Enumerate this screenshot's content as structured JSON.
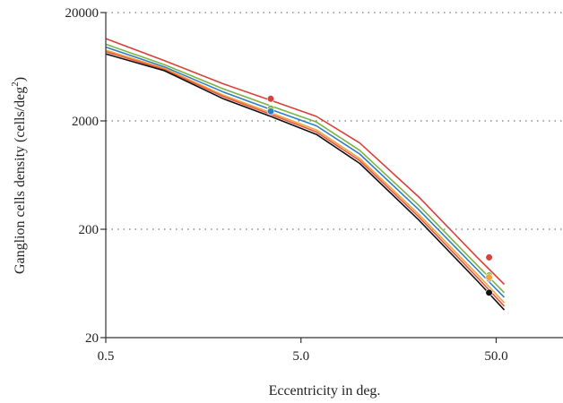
{
  "chart_data": {
    "type": "line",
    "xlabel": "Eccentricity in deg.",
    "ylabel": "Ganglion cells density (cells/deg",
    "ylabel_sup": "2",
    "ylabel_tail": ")",
    "x_scale": "log",
    "y_scale": "log",
    "xlim": [
      0.5,
      110
    ],
    "ylim": [
      20,
      20000
    ],
    "x_ticks": [
      0.5,
      5,
      50
    ],
    "x_tick_labels": [
      "0.5",
      "5.0",
      "50.0"
    ],
    "y_ticks": [
      20,
      200,
      2000,
      20000
    ],
    "y_tick_labels": [
      "20",
      "200",
      "2000",
      "20000"
    ],
    "grid": "y-dotted",
    "series": [
      {
        "color": "#d9413a",
        "points": [
          [
            0.5,
            11500
          ],
          [
            1,
            7200
          ],
          [
            2,
            4400
          ],
          [
            3.5,
            3100
          ],
          [
            6,
            2200
          ],
          [
            10,
            1250
          ],
          [
            20,
            400
          ],
          [
            40,
            110
          ],
          [
            55,
            62
          ]
        ]
      },
      {
        "color": "#7cb342",
        "points": [
          [
            0.5,
            10200
          ],
          [
            1,
            6600
          ],
          [
            2,
            3950
          ],
          [
            3.5,
            2750
          ],
          [
            6,
            1950
          ],
          [
            10,
            1070
          ],
          [
            20,
            335
          ],
          [
            40,
            93
          ],
          [
            55,
            52
          ]
        ]
      },
      {
        "color": "#2f7fc1",
        "points": [
          [
            0.5,
            9600
          ],
          [
            1,
            6300
          ],
          [
            2,
            3700
          ],
          [
            3.5,
            2550
          ],
          [
            6,
            1800
          ],
          [
            10,
            990
          ],
          [
            20,
            305
          ],
          [
            40,
            85
          ],
          [
            55,
            47
          ]
        ]
      },
      {
        "color": "#f3a33c",
        "points": [
          [
            0.5,
            9000
          ],
          [
            1,
            6100
          ],
          [
            2,
            3450
          ],
          [
            3.5,
            2380
          ],
          [
            6,
            1650
          ],
          [
            10,
            900
          ],
          [
            20,
            277
          ],
          [
            40,
            77
          ],
          [
            55,
            42
          ]
        ]
      },
      {
        "color": "#e8553f",
        "points": [
          [
            0.5,
            8700
          ],
          [
            1,
            5950
          ],
          [
            2,
            3350
          ],
          [
            3.5,
            2300
          ],
          [
            6,
            1580
          ],
          [
            10,
            860
          ],
          [
            20,
            262
          ],
          [
            40,
            72
          ],
          [
            55,
            39
          ]
        ]
      },
      {
        "color": "#111111",
        "points": [
          [
            0.5,
            8300
          ],
          [
            1,
            5800
          ],
          [
            2,
            3200
          ],
          [
            3.5,
            2200
          ],
          [
            6,
            1500
          ],
          [
            10,
            810
          ],
          [
            20,
            245
          ],
          [
            40,
            67
          ],
          [
            55,
            36
          ]
        ]
      }
    ],
    "markers": [
      {
        "color": "#d9413a",
        "x": 3.5,
        "y": 3200
      },
      {
        "color": "#7cb342",
        "x": 3.5,
        "y": 2600
      },
      {
        "color": "#2f7fc1",
        "x": 3.5,
        "y": 2450
      },
      {
        "color": "#d9413a",
        "x": 46,
        "y": 110
      },
      {
        "color": "#7cb342",
        "x": 46,
        "y": 75
      },
      {
        "color": "#2f7fc1",
        "x": 46,
        "y": 70
      },
      {
        "color": "#f3a33c",
        "x": 46,
        "y": 72
      },
      {
        "color": "#111111",
        "x": 46,
        "y": 52
      }
    ]
  }
}
